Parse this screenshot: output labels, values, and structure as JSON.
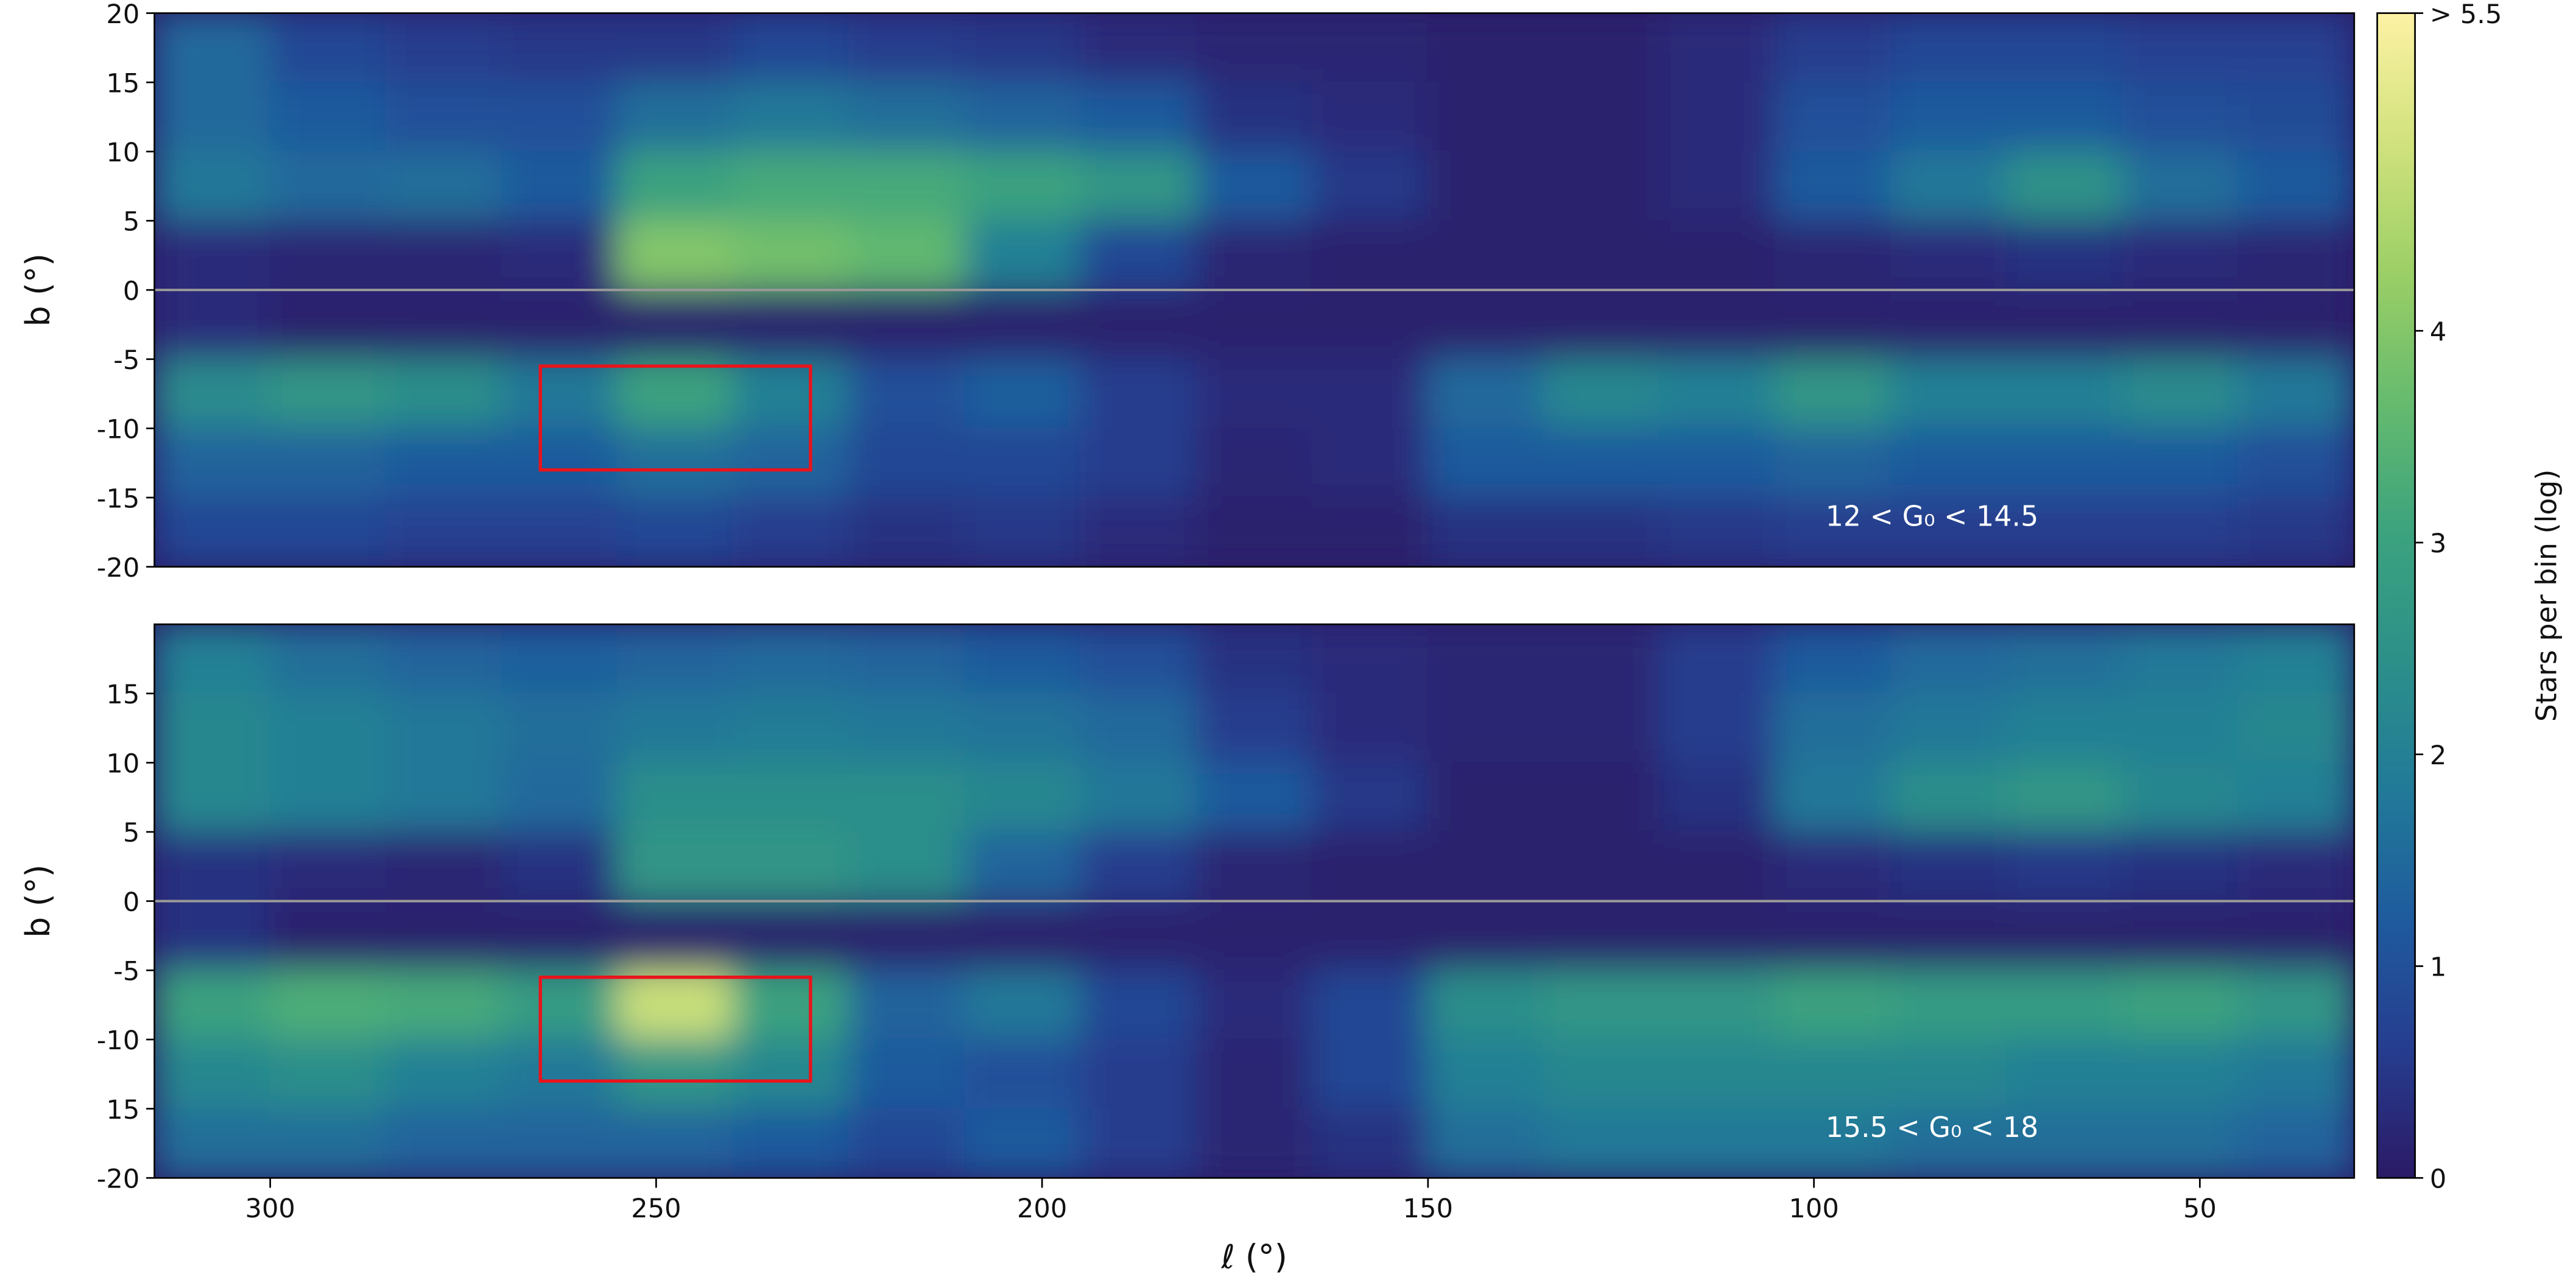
{
  "chart_data": [
    {
      "type": "heatmap",
      "annotation": "12 < G₀ < 14.5",
      "ylabel": "b (°)",
      "xlim": [
        315,
        30
      ],
      "ylim": [
        -20,
        20
      ],
      "yticks": [
        20,
        15,
        10,
        5,
        0,
        -5,
        -10,
        -15,
        -20
      ],
      "x": [
        307.5,
        292.5,
        277.5,
        262.5,
        247.5,
        232.5,
        217.5,
        202.5,
        187.5,
        172.5,
        157.5,
        142.5,
        127.5,
        112.5,
        97.5,
        82.5,
        67.5,
        52.5,
        37.5
      ],
      "y": [
        17.5,
        12.5,
        7.5,
        2.5,
        -2.5,
        -7.5,
        -12.5,
        -17.5
      ],
      "values": [
        [
          1.5,
          0.8,
          0.6,
          0.5,
          0.5,
          0.8,
          0.6,
          0.5,
          0.3,
          0.2,
          0.2,
          0.1,
          0.1,
          0.3,
          0.6,
          0.8,
          0.8,
          0.7,
          0.7
        ],
        [
          1.5,
          1.2,
          1.0,
          1.0,
          1.6,
          1.8,
          1.6,
          1.4,
          1.2,
          0.4,
          0.3,
          0.1,
          0.1,
          0.3,
          1.0,
          1.2,
          1.2,
          1.0,
          0.9
        ],
        [
          1.8,
          1.5,
          1.6,
          1.2,
          3.0,
          3.2,
          3.2,
          3.0,
          2.6,
          1.2,
          0.5,
          0.1,
          0.1,
          0.3,
          1.2,
          1.8,
          2.5,
          1.6,
          1.2
        ],
        [
          0.3,
          0.2,
          0.2,
          0.3,
          4.0,
          3.8,
          3.6,
          2.0,
          0.8,
          0.2,
          0.1,
          0.1,
          0.1,
          0.1,
          0.2,
          0.3,
          0.4,
          0.3,
          0.2
        ],
        [
          0.3,
          0.1,
          0.1,
          0.1,
          0.1,
          0.1,
          0.1,
          0.1,
          0.1,
          0.1,
          0.1,
          0.1,
          0.1,
          0.1,
          0.1,
          0.1,
          0.1,
          0.1,
          0.1
        ],
        [
          2.3,
          2.6,
          2.4,
          1.8,
          3.0,
          2.0,
          1.0,
          1.3,
          0.6,
          0.3,
          0.3,
          1.5,
          2.2,
          2.0,
          2.6,
          2.0,
          2.0,
          2.3,
          1.8
        ],
        [
          1.4,
          1.4,
          1.2,
          1.2,
          1.6,
          1.4,
          0.8,
          0.8,
          0.6,
          0.2,
          0.3,
          1.2,
          1.2,
          1.2,
          1.4,
          1.2,
          1.2,
          1.2,
          1.0
        ],
        [
          0.8,
          0.8,
          0.7,
          0.7,
          0.8,
          0.6,
          0.4,
          0.5,
          0.3,
          0.1,
          0.1,
          0.4,
          0.4,
          0.5,
          0.6,
          0.6,
          0.6,
          0.6,
          0.5
        ]
      ],
      "hline": 0,
      "box": {
        "x": [
          265,
          230
        ],
        "y": [
          -5.5,
          -13
        ],
        "color": "#e8141c"
      },
      "colorbar": {
        "label": "Stars per bin (log)",
        "clim": [
          0,
          5.5
        ],
        "ticks": [
          0,
          1,
          2,
          3,
          4,
          {
            "value": 5.5,
            "label": "> 5.5"
          }
        ],
        "colors": [
          "#2b1a66",
          "#263d8f",
          "#1f5b9e",
          "#217a98",
          "#2c9089",
          "#3ca37e",
          "#66bb6e",
          "#9ccf66",
          "#d1e27d",
          "#fdf2a4"
        ]
      }
    },
    {
      "type": "heatmap",
      "annotation": "15.5 < G₀ < 18",
      "ylabel": "b (°)",
      "xlabel": "ℓ (°)",
      "xlim": [
        315,
        30
      ],
      "ylim": [
        -20,
        20
      ],
      "xticks": [
        300,
        250,
        200,
        150,
        100,
        50
      ],
      "yticks": [
        15,
        10,
        5,
        0,
        -5,
        -10,
        {
          "value": -15,
          "label": "15"
        },
        -20
      ],
      "x": [
        307.5,
        292.5,
        277.5,
        262.5,
        247.5,
        232.5,
        217.5,
        202.5,
        187.5,
        172.5,
        157.5,
        142.5,
        127.5,
        112.5,
        97.5,
        82.5,
        67.5,
        52.5,
        37.5
      ],
      "y": [
        17.5,
        12.5,
        7.5,
        2.5,
        -2.5,
        -7.5,
        -12.5,
        -17.5
      ],
      "values": [
        [
          2.0,
          1.6,
          1.4,
          1.3,
          1.4,
          1.5,
          1.4,
          1.2,
          1.0,
          0.4,
          0.3,
          0.2,
          0.2,
          0.6,
          1.2,
          1.5,
          1.6,
          1.8,
          2.0
        ],
        [
          2.2,
          2.0,
          1.8,
          1.6,
          1.8,
          1.9,
          1.8,
          1.7,
          1.5,
          0.6,
          0.3,
          0.2,
          0.2,
          0.6,
          1.6,
          1.8,
          2.0,
          2.0,
          2.2
        ],
        [
          2.2,
          2.0,
          1.8,
          1.5,
          2.4,
          2.4,
          2.4,
          2.2,
          1.8,
          1.2,
          0.5,
          0.1,
          0.1,
          0.4,
          1.8,
          2.4,
          2.6,
          2.2,
          2.0
        ],
        [
          0.4,
          0.3,
          0.2,
          0.4,
          2.6,
          2.6,
          2.4,
          1.4,
          0.6,
          0.2,
          0.1,
          0.1,
          0.1,
          0.1,
          0.3,
          0.4,
          0.5,
          0.4,
          0.3
        ],
        [
          0.4,
          0.1,
          0.1,
          0.1,
          0.1,
          0.1,
          0.1,
          0.1,
          0.1,
          0.1,
          0.1,
          0.1,
          0.1,
          0.1,
          0.1,
          0.1,
          0.1,
          0.1,
          0.1
        ],
        [
          3.0,
          3.3,
          3.2,
          2.8,
          4.8,
          3.0,
          1.4,
          1.8,
          0.8,
          0.3,
          0.8,
          2.4,
          2.6,
          2.6,
          3.0,
          2.8,
          2.8,
          3.0,
          2.6
        ],
        [
          2.2,
          2.4,
          2.0,
          1.8,
          2.6,
          2.2,
          1.2,
          1.0,
          0.6,
          0.2,
          0.8,
          2.0,
          2.2,
          2.2,
          2.2,
          2.2,
          2.0,
          2.0,
          1.8
        ],
        [
          1.6,
          1.6,
          1.4,
          1.4,
          1.4,
          1.2,
          0.8,
          1.2,
          0.6,
          0.2,
          0.4,
          1.6,
          1.8,
          1.8,
          1.8,
          1.6,
          1.6,
          1.6,
          1.4
        ]
      ],
      "hline": 0,
      "box": {
        "x": [
          265,
          230
        ],
        "y": [
          -5.5,
          -13
        ],
        "color": "#e8141c"
      }
    }
  ]
}
